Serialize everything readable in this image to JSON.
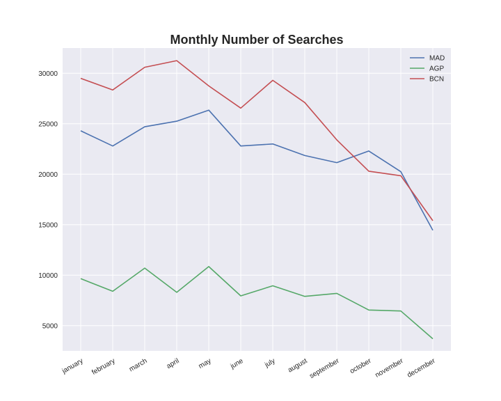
{
  "chart_data": {
    "type": "line",
    "title": "Monthly Number of Searches",
    "xlabel": "",
    "ylabel": "",
    "categories": [
      "january",
      "february",
      "march",
      "april",
      "may",
      "june",
      "july",
      "august",
      "september",
      "october",
      "november",
      "december"
    ],
    "yticks": [
      5000,
      10000,
      15000,
      20000,
      25000,
      30000
    ],
    "ylim": [
      2500,
      32500
    ],
    "grid": true,
    "legend_position": "top-right",
    "background": "#eaeaf2",
    "series": [
      {
        "name": "MAD",
        "color": "#4c72b0",
        "values": [
          24300,
          22800,
          24700,
          25250,
          26350,
          22800,
          23000,
          21850,
          21150,
          22300,
          20250,
          14450
        ]
      },
      {
        "name": "AGP",
        "color": "#55a868",
        "values": [
          9650,
          8400,
          10700,
          8300,
          10850,
          7950,
          8950,
          7900,
          8200,
          6550,
          6450,
          3700
        ]
      },
      {
        "name": "BCN",
        "color": "#c44e52",
        "values": [
          29500,
          28350,
          30600,
          31250,
          28750,
          26550,
          29300,
          27100,
          23400,
          20300,
          19850,
          15400
        ]
      }
    ]
  }
}
